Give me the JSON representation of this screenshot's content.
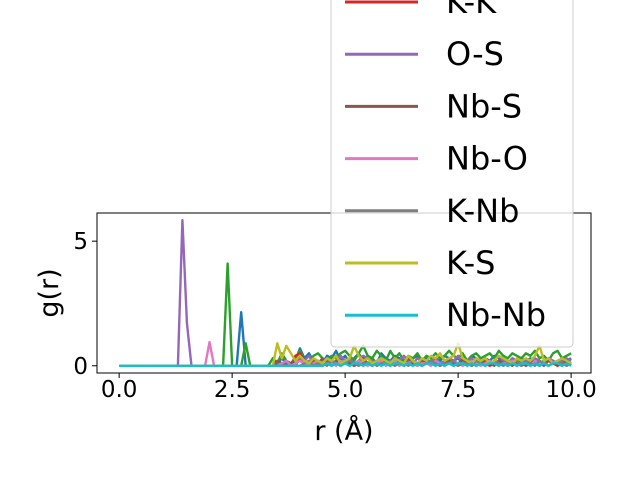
{
  "chart_data": {
    "type": "line",
    "xlabel": "r (Å)",
    "ylabel": "g(r)",
    "xlim": [
      -0.49,
      10.44
    ],
    "ylim": [
      -0.29,
      6.13
    ],
    "xticks": [
      {
        "value": 0,
        "label": "0.0"
      },
      2.5,
      {
        "value": 5,
        "label": "5.0"
      },
      7.5,
      {
        "value": 10,
        "label": "10.0"
      }
    ],
    "yticks": [
      0,
      5
    ],
    "x": [
      0,
      0.1,
      0.2,
      0.3,
      0.4,
      0.5,
      0.6,
      0.7,
      0.8,
      0.9,
      1,
      1.1,
      1.2,
      1.3,
      1.4,
      1.5,
      1.6,
      1.7,
      1.8,
      1.9,
      2,
      2.1,
      2.2,
      2.3,
      2.4,
      2.5,
      2.6,
      2.7,
      2.8,
      2.9,
      3,
      3.1,
      3.2,
      3.3,
      3.4,
      3.5,
      3.6,
      3.7,
      3.8,
      3.9,
      4,
      4.1,
      4.2,
      4.3,
      4.4,
      4.5,
      4.6,
      4.7,
      4.8,
      4.9,
      5,
      5.1,
      5.2,
      5.3,
      5.4,
      5.5,
      5.6,
      5.7,
      5.8,
      5.9,
      6,
      6.1,
      6.2,
      6.3,
      6.4,
      6.5,
      6.6,
      6.7,
      6.8,
      6.9,
      7,
      7.1,
      7.2,
      7.3,
      7.4,
      7.5,
      7.6,
      7.7,
      7.8,
      7.9,
      8,
      8.1,
      8.2,
      8.3,
      8.4,
      8.5,
      8.6,
      8.7,
      8.8,
      8.9,
      9,
      9.1,
      9.2,
      9.3,
      9.4,
      9.5,
      9.6,
      9.7,
      9.8,
      9.9,
      10
    ],
    "series": [
      {
        "color": "#1f77b4",
        "values": [
          0,
          0,
          0,
          0,
          0,
          0,
          0,
          0,
          0,
          0,
          0,
          0,
          0,
          0,
          0,
          0,
          0,
          0,
          0,
          0,
          0,
          0,
          0,
          0,
          0,
          0,
          0,
          2.15,
          0,
          0,
          0,
          0,
          0,
          0,
          0,
          0.1,
          0.3,
          0.1,
          0,
          0.2,
          0.7,
          0.3,
          0.5,
          0.2,
          0,
          0.1,
          0.4,
          0.3,
          0.6,
          0.2,
          0.4,
          0.1,
          0.3,
          0.5,
          0.2,
          0.4,
          0.3,
          0.1,
          0.5,
          0.3,
          0.2,
          0.4,
          0.3,
          0.2,
          0.1,
          0.3,
          0.4,
          0.2,
          0.3,
          0.1,
          0.3,
          0.2,
          0.4,
          0.3,
          0.2,
          0.3,
          0.1,
          0.2,
          0.4,
          0.3,
          0.2,
          0.3,
          0.2,
          0.4,
          0.3,
          0.2,
          0.1,
          0.3,
          0.2,
          0.3,
          0.2,
          0.3,
          0.2,
          0.1,
          0.2,
          0.3,
          0.2,
          0.1,
          0.3,
          0.2,
          0.3
        ]
      },
      {
        "color": "#2ca02c",
        "values": [
          0,
          0,
          0,
          0,
          0,
          0,
          0,
          0,
          0,
          0,
          0,
          0,
          0,
          0,
          0,
          0,
          0,
          0,
          0,
          0,
          0,
          0,
          0,
          0,
          4.1,
          0,
          0,
          0,
          0.9,
          0,
          0,
          0,
          0,
          0,
          0.3,
          0.1,
          0.5,
          0.2,
          0.1,
          0.3,
          0.6,
          0.2,
          0.1,
          0.4,
          0.5,
          0.3,
          0.2,
          0.4,
          0.3,
          0.5,
          0.6,
          0.4,
          0.2,
          0.5,
          0.8,
          0.4,
          0.3,
          0.6,
          0.4,
          0.2,
          0.6,
          0.3,
          0.5,
          0.2,
          0.4,
          0.3,
          0.5,
          0.2,
          0.4,
          0.3,
          0.5,
          0.3,
          0.4,
          0.6,
          0.4,
          0.3,
          0.5,
          0.2,
          0.4,
          0.5,
          0.3,
          0.4,
          0.5,
          0.3,
          0.6,
          0.4,
          0.3,
          0.5,
          0.4,
          0.3,
          0.5,
          0.4,
          0.6,
          0.3,
          0.4,
          0.2,
          0.5,
          0.6,
          0.3,
          0.4,
          0.5
        ]
      },
      {
        "name": "K-K",
        "color": "#d62728",
        "values": [
          0,
          0,
          0,
          0,
          0,
          0,
          0,
          0,
          0,
          0,
          0,
          0,
          0,
          0,
          0,
          0,
          0,
          0,
          0,
          0,
          0,
          0,
          0,
          0,
          0,
          0,
          0,
          0,
          0,
          0,
          0,
          0,
          0,
          0,
          0,
          0,
          0,
          0,
          0,
          0.4,
          0.5,
          0.2,
          0,
          0.1,
          0.2,
          0,
          0.1,
          0.2,
          0.1,
          0,
          0.2,
          0.1,
          0,
          0.1,
          0.2,
          0.1,
          0,
          0.2,
          0.1,
          0.1,
          0,
          0.2,
          0.1,
          0,
          0.1,
          0.2,
          0.1,
          0,
          0.1,
          0.2,
          0.1,
          0,
          0.2,
          0.1,
          0,
          0.1,
          0.2,
          0.1,
          0,
          0.1,
          0.2,
          0.1,
          0,
          0.1,
          0.2,
          0.1,
          0,
          0.2,
          0.1,
          0,
          0.1,
          0.2,
          0.1,
          0,
          0.1,
          0.2,
          0.1,
          0,
          0.1,
          0.2,
          0.1
        ]
      },
      {
        "name": "O-S",
        "color": "#9467bd",
        "values": [
          0,
          0,
          0,
          0,
          0,
          0,
          0,
          0,
          0,
          0,
          0,
          0,
          0,
          0,
          5.84,
          1.7,
          0,
          0,
          0,
          0,
          0,
          0,
          0,
          0,
          0,
          0,
          0,
          0,
          0,
          0,
          0,
          0,
          0,
          0,
          0,
          0,
          0,
          0,
          0,
          0,
          0.3,
          0.2,
          0.4,
          0.1,
          0,
          0.2,
          0.3,
          0.1,
          0.2,
          0.4,
          0.2,
          0.3,
          0.1,
          0.2,
          0.4,
          0.3,
          0.2,
          0.1,
          0.3,
          0.2,
          0.1,
          0.3,
          0.2,
          0.4,
          0.2,
          0.1,
          0.3,
          0.2,
          0.1,
          0.2,
          0.3,
          0.1,
          0.2,
          0.3,
          0.2,
          0.4,
          0.1,
          0.2,
          0.3,
          0.1,
          0.2,
          0.3,
          0.1,
          0.2,
          0.4,
          0.2,
          0.1,
          0.3,
          0.2,
          0.1,
          0.2,
          0.1,
          0.3,
          0.2,
          0.1,
          0.3,
          0.2,
          0.1,
          0.2,
          0.3,
          0.2
        ]
      },
      {
        "name": "Nb-S",
        "color": "#8c564b",
        "values": [
          0,
          0,
          0,
          0,
          0,
          0,
          0,
          0,
          0,
          0,
          0,
          0,
          0,
          0,
          0,
          0,
          0,
          0,
          0,
          0,
          0,
          0,
          0,
          0,
          0,
          0,
          0,
          0,
          0,
          0,
          0,
          0,
          0,
          0,
          0,
          0.2,
          0.1,
          0,
          0.1,
          0.3,
          0.2,
          0.1,
          0,
          0.2,
          0.1,
          0.3,
          0.1,
          0,
          0.2,
          0.1,
          0.1,
          0.2,
          0,
          0.1,
          0.3,
          0.1,
          0.2,
          0,
          0.1,
          0.2,
          0.1,
          0,
          0.2,
          0.1,
          0.3,
          0.1,
          0,
          0.2,
          0.1,
          0.1,
          0.2,
          0,
          0.1,
          0.2,
          0.1,
          0,
          0.3,
          0.1,
          0.2,
          0,
          0.1,
          0.2,
          0.1,
          0,
          0.2,
          0.1,
          0.1,
          0,
          0.2,
          0.1,
          0,
          0.1,
          0.2,
          0.1,
          0,
          0.2,
          0.1,
          0.1,
          0,
          0.2,
          0.1
        ]
      },
      {
        "name": "Nb-O",
        "color": "#e377c2",
        "values": [
          0,
          0,
          0,
          0,
          0,
          0,
          0,
          0,
          0,
          0,
          0,
          0,
          0,
          0,
          0,
          0,
          0,
          0,
          0,
          0,
          0.95,
          0,
          0,
          0,
          0,
          0,
          0,
          0,
          0,
          0,
          0,
          0,
          0,
          0,
          0,
          0,
          0.1,
          0.2,
          0,
          0.1,
          0.2,
          0.1,
          0,
          0.1,
          0.2,
          0,
          0.1,
          0.1,
          0,
          0.2,
          0.1,
          0,
          0.1,
          0.2,
          0.1,
          0,
          0.1,
          0.1,
          0.2,
          0,
          0.1,
          0.2,
          0,
          0.1,
          0.1,
          0.2,
          0,
          0.1,
          0.1,
          0,
          0.2,
          0.1,
          0,
          0.1,
          0.2,
          0.1,
          0,
          0.1,
          0.2,
          0.1,
          0,
          0.1,
          0.2,
          0.1,
          0,
          0.1,
          0.1,
          0.2,
          0,
          0.1,
          0.1,
          0,
          0.2,
          0.1,
          0.1,
          0,
          0.1,
          0.2,
          0.1,
          0,
          0.1
        ]
      },
      {
        "name": "K-Nb",
        "color": "#7f7f7f",
        "values": [
          0,
          0,
          0,
          0,
          0,
          0,
          0,
          0,
          0,
          0,
          0,
          0,
          0,
          0,
          0,
          0,
          0,
          0,
          0,
          0,
          0,
          0,
          0,
          0,
          0,
          0,
          0,
          0,
          0,
          0,
          0,
          0,
          0,
          0,
          0,
          0,
          0,
          0,
          0,
          0,
          0,
          0.1,
          0.2,
          0,
          0.1,
          0.1,
          0,
          0.2,
          0.1,
          0,
          0.1,
          0.2,
          0.1,
          0,
          0.1,
          0.1,
          0.2,
          0,
          0.1,
          0.1,
          0.2,
          0,
          0.1,
          0.1,
          0,
          0.2,
          0.1,
          0,
          0.1,
          0.2,
          0.1,
          0,
          0.1,
          0.1,
          0.2,
          0,
          0.1,
          0.1,
          0,
          0.2,
          0.1,
          0,
          0.1,
          0.2,
          0.1,
          0,
          0.1,
          0.1,
          0.2,
          0,
          0.1,
          0.1,
          0,
          0.2,
          0.1,
          0,
          0.1,
          0.2,
          0.1,
          0,
          0.1
        ]
      },
      {
        "name": "K-S",
        "color": "#bcbd22",
        "values": [
          0,
          0,
          0,
          0,
          0,
          0,
          0,
          0,
          0,
          0,
          0,
          0,
          0,
          0,
          0,
          0,
          0,
          0,
          0,
          0,
          0,
          0,
          0,
          0,
          0,
          0,
          0,
          0,
          0,
          0,
          0,
          0,
          0,
          0,
          0,
          0.9,
          0.3,
          0.8,
          0.5,
          0.2,
          0.4,
          0.2,
          0.1,
          0.3,
          0.2,
          0.1,
          0.3,
          0.2,
          0.4,
          0.1,
          0.2,
          0.3,
          0.8,
          0.4,
          0.2,
          0.3,
          0.1,
          0.2,
          0.3,
          0.2,
          0.1,
          0.3,
          0.2,
          0.1,
          0.4,
          0.2,
          0.1,
          0.3,
          0.2,
          0.4,
          0.3,
          0.5,
          0.2,
          0.3,
          0.4,
          0.9,
          0.3,
          0.2,
          0.1,
          0.3,
          0.2,
          0.3,
          0.1,
          0.2,
          0.4,
          0.3,
          0.2,
          0.1,
          0.3,
          0.2,
          0.3,
          0.2,
          0.4,
          0.8,
          0.2,
          0.3,
          0.1,
          0.2,
          0.3,
          0.2,
          0.1
        ]
      },
      {
        "name": "Nb-Nb",
        "color": "#17becf",
        "values": [
          0,
          0,
          0,
          0,
          0,
          0,
          0,
          0,
          0,
          0,
          0,
          0,
          0,
          0,
          0,
          0,
          0,
          0,
          0,
          0,
          0,
          0,
          0,
          0,
          0,
          0,
          0,
          0,
          0,
          0,
          0,
          0,
          0,
          0,
          0,
          0,
          0,
          0,
          0,
          0,
          0,
          0,
          0,
          0,
          0,
          0,
          0.1,
          0,
          0.1,
          0,
          0.1,
          0,
          0.1,
          0.1,
          0,
          0.1,
          0,
          0.1,
          0,
          0.1,
          0,
          0.1,
          0.1,
          0,
          0.1,
          0,
          0.1,
          0,
          0.1,
          0.1,
          0,
          0.1,
          0,
          0.1,
          0,
          0.1,
          0.1,
          0,
          0.1,
          0,
          0.1,
          0,
          0.1,
          0.1,
          0,
          0.1,
          0,
          0.1,
          0,
          0.1,
          0.1,
          0,
          0.1,
          0,
          0.1,
          0,
          0.1,
          0.1,
          0,
          0.1,
          0
        ]
      }
    ]
  }
}
